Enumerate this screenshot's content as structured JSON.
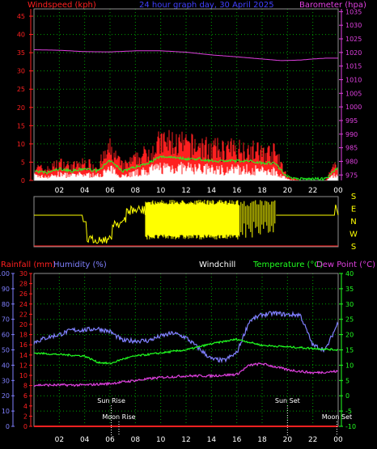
{
  "header": {
    "windspeed_label": "Windspeed (kph)",
    "title": "24 hour graph day, 30 April 2025",
    "barometer_label": "Barometer (hpa)"
  },
  "colors": {
    "background": "#000000",
    "grid": "#00a000",
    "windspeed": "#ff2020",
    "wind_direction": "#ffff00",
    "barometer": "#e040e0",
    "rainfall": "#ff2020",
    "humidity": "#8080ff",
    "windchill": "#ffffff",
    "temperature": "#20ff20",
    "dew_point": "#e040e0",
    "text": "#ffffff"
  },
  "chart_data": [
    {
      "type": "area",
      "title": "24 hour graph day, 30 April 2025",
      "x_ticks": [
        "02",
        "04",
        "06",
        "08",
        "10",
        "12",
        "14",
        "16",
        "18",
        "20",
        "22",
        "00"
      ],
      "left_axis": {
        "label": "Windspeed (kph)",
        "range": [
          0,
          47
        ],
        "ticks": [
          "0",
          "5",
          "10",
          "15",
          "20",
          "25",
          "30",
          "35",
          "40",
          "45"
        ]
      },
      "right_axis": {
        "label": "Barometer (hpa)",
        "range": [
          973,
          1036
        ],
        "ticks": [
          "975",
          "980",
          "985",
          "990",
          "995",
          "1000",
          "1005",
          "1010",
          "1015",
          "1020",
          "1025",
          "1030",
          "1035"
        ]
      },
      "series": [
        {
          "name": "Windspeed (kph)",
          "color": "#ff2020",
          "x_hours": [
            0,
            1,
            2,
            3,
            4,
            5,
            6,
            7,
            8,
            9,
            10,
            11,
            12,
            13,
            14,
            15,
            16,
            17,
            18,
            19,
            20,
            21,
            22,
            23,
            24
          ],
          "values": [
            4,
            3,
            5,
            4,
            5,
            4,
            9,
            4,
            6,
            8,
            11,
            11,
            10,
            10,
            9,
            9,
            9,
            9,
            8,
            8,
            1,
            0,
            0,
            0,
            6
          ]
        },
        {
          "name": "Barometer (hpa)",
          "color": "#e040e0",
          "x_hours": [
            0,
            2,
            4,
            6,
            8,
            10,
            12,
            14,
            16,
            18,
            19.5,
            21,
            22,
            23,
            24
          ],
          "values": [
            1021,
            1020.8,
            1020.3,
            1020.2,
            1020.6,
            1020.6,
            1020.1,
            1019.1,
            1018.4,
            1017.6,
            1017,
            1017.2,
            1017.6,
            1017.9,
            1017.9
          ]
        }
      ]
    },
    {
      "type": "line",
      "title": "",
      "x_ticks": [
        "02",
        "04",
        "06",
        "08",
        "10",
        "12",
        "14",
        "16",
        "18",
        "20",
        "22",
        "00"
      ],
      "y_labels": [
        "S",
        "E",
        "N",
        "W",
        "S"
      ],
      "series": [
        {
          "name": "Wind direction",
          "color": "#ffff00",
          "segments": [
            {
              "x_hours": [
                0,
                3.8,
                4.2,
                4.6,
                5.0,
                5.5,
                6.0,
                6.3,
                6.6,
                7.0,
                7.3,
                7.5,
                8.0,
                8.5,
                9.0,
                9.5,
                10.0
              ],
              "values": [
                "S",
                "S",
                "N",
                "N",
                "N",
                "N",
                "N",
                "W",
                "N",
                "N",
                "W",
                "E",
                "E",
                "E",
                "E",
                "E",
                "E"
              ]
            }
          ]
        }
      ]
    },
    {
      "type": "line",
      "title": "",
      "x_ticks": [
        "02",
        "04",
        "06",
        "08",
        "10",
        "12",
        "14",
        "16",
        "18",
        "20",
        "22",
        "00"
      ],
      "axes": {
        "rainfall": {
          "label": "Rainfall (mm)",
          "range": [
            0,
            30
          ],
          "ticks": [
            "0",
            "2",
            "4",
            "6",
            "8",
            "10",
            "12",
            "14",
            "16",
            "18",
            "20",
            "22",
            "24",
            "26",
            "28",
            "30"
          ]
        },
        "humidity": {
          "label": "Humidity (%)",
          "range": [
            0,
            100
          ],
          "ticks": [
            "0",
            "10",
            "20",
            "30",
            "40",
            "50",
            "60",
            "70",
            "80",
            "90",
            "100"
          ]
        },
        "temperature": {
          "label": "Temperature (°C)",
          "range": [
            -10,
            40
          ],
          "ticks": [
            "-10",
            "-5",
            "0",
            "5",
            "10",
            "15",
            "20",
            "25",
            "30",
            "35",
            "40"
          ]
        }
      },
      "labels": {
        "windchill": "Windchill",
        "dew_point": "Dew Point (°C)"
      },
      "series": [
        {
          "name": "Humidity (%)",
          "color": "#8080ff",
          "x_hours": [
            0,
            1,
            2,
            3,
            4,
            5,
            6,
            7,
            8,
            9,
            10,
            11,
            12,
            13,
            14,
            15,
            16,
            17,
            18,
            19,
            20,
            21,
            22,
            23,
            24
          ],
          "values": [
            55,
            58,
            60,
            63,
            63,
            64,
            62,
            56,
            56,
            56,
            59,
            61,
            58,
            51,
            44,
            43,
            48,
            69,
            73,
            74,
            73,
            73,
            53,
            50,
            68
          ]
        },
        {
          "name": "Temperature (°C)",
          "color": "#20ff20",
          "x_hours": [
            0,
            2,
            4,
            5,
            6,
            7,
            8,
            10,
            12,
            14,
            16,
            17,
            18,
            20,
            22,
            24
          ],
          "values": [
            14,
            13.5,
            13,
            11,
            10.5,
            12,
            13,
            14,
            15,
            17,
            18.5,
            17.5,
            16.5,
            16,
            15.5,
            15
          ]
        },
        {
          "name": "Dew Point (°C)",
          "color": "#e040e0",
          "x_hours": [
            0,
            2,
            4,
            6,
            8,
            10,
            12,
            14,
            16,
            17,
            18,
            20,
            22,
            24
          ],
          "values": [
            3.5,
            3.5,
            3.5,
            4,
            5,
            6,
            6.5,
            6.5,
            7,
            10,
            10.5,
            8.5,
            7.5,
            8
          ]
        },
        {
          "name": "Rainfall (mm)",
          "color": "#ff2020",
          "x_hours": [
            0,
            24
          ],
          "values": [
            0,
            0
          ]
        }
      ],
      "annotations": [
        {
          "text": "Sun Rise",
          "x_hour": 6.1
        },
        {
          "text": "Moon Rise",
          "x_hour": 6.7
        },
        {
          "text": "Sun Set",
          "x_hour": 20.0
        },
        {
          "text": "Moon Set",
          "x_hour": 23.9
        }
      ]
    }
  ]
}
